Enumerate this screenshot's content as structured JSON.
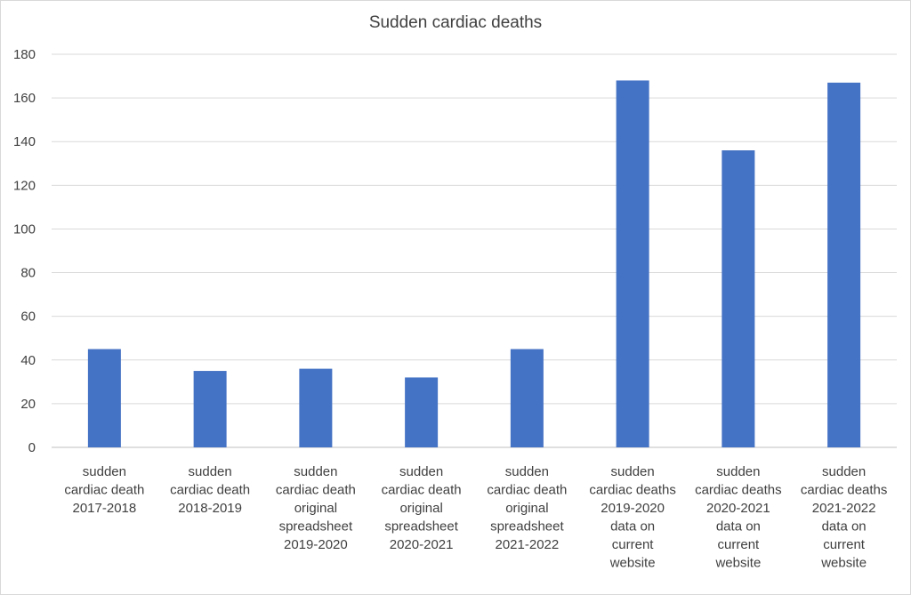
{
  "chart_data": {
    "type": "bar",
    "title": "Sudden cardiac deaths",
    "xlabel": "",
    "ylabel": "",
    "ylim": [
      0,
      180
    ],
    "yticks": [
      0,
      20,
      40,
      60,
      80,
      100,
      120,
      140,
      160,
      180
    ],
    "grid": true,
    "legend": "none",
    "color": "#4472c4",
    "categories": [
      [
        "sudden",
        "cardiac death",
        "2017-2018"
      ],
      [
        "sudden",
        "cardiac death",
        "2018-2019"
      ],
      [
        "sudden",
        "cardiac death",
        "original",
        "spreadsheet",
        "2019-2020"
      ],
      [
        "sudden",
        "cardiac death",
        "original",
        "spreadsheet",
        "2020-2021"
      ],
      [
        "sudden",
        "cardiac death",
        "original",
        "spreadsheet",
        "2021-2022"
      ],
      [
        "sudden",
        "cardiac deaths",
        "2019-2020",
        "data on",
        "current",
        "website"
      ],
      [
        "sudden",
        "cardiac deaths",
        "2020-2021",
        "data on",
        "current",
        "website"
      ],
      [
        "sudden",
        "cardiac deaths",
        "2021-2022",
        "data on",
        "current",
        "website"
      ]
    ],
    "values": [
      45,
      35,
      36,
      32,
      45,
      168,
      136,
      167
    ]
  }
}
